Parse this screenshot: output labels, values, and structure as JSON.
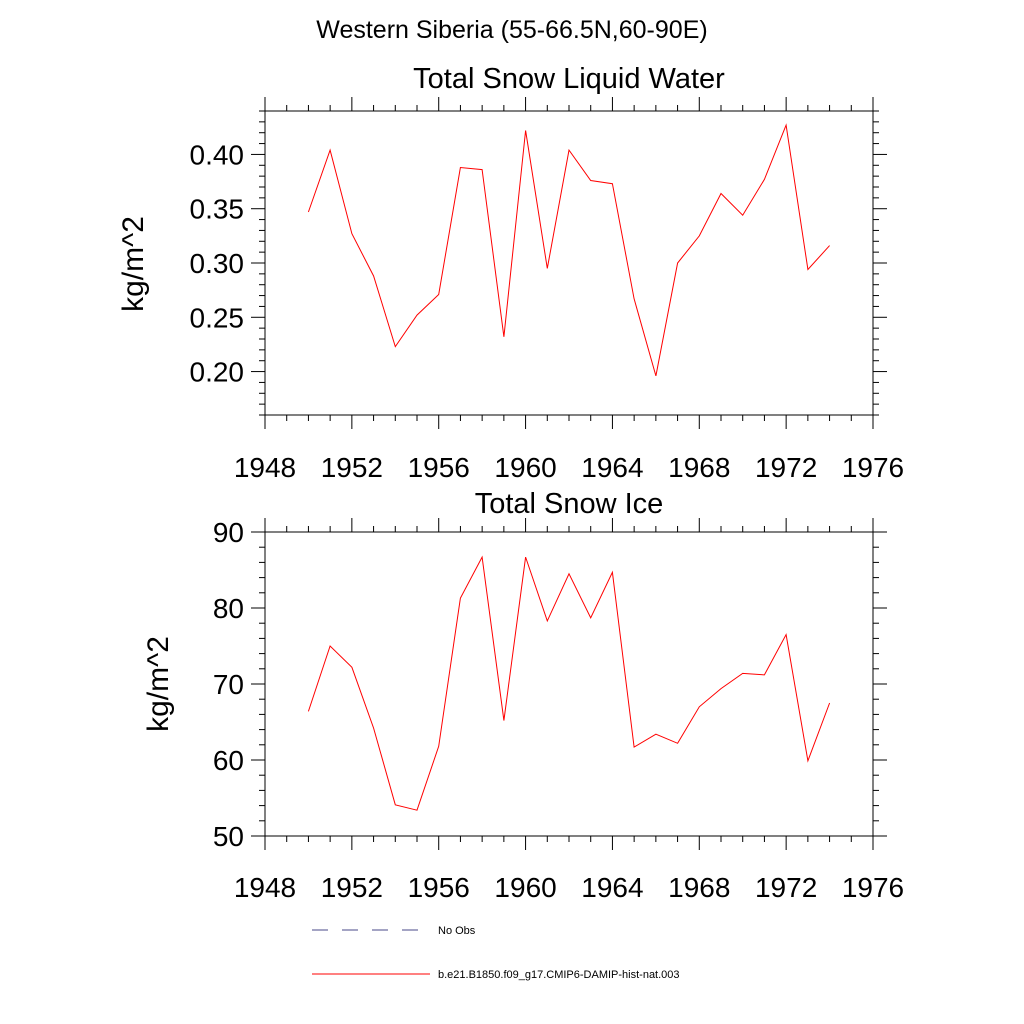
{
  "figure": {
    "suptitle": "Western Siberia (55-66.5N,60-90E)"
  },
  "chart_data": [
    {
      "type": "line",
      "title": "Total Snow Liquid Water",
      "xlabel": "",
      "ylabel": "kg/m^2",
      "xlim": [
        1948,
        1976
      ],
      "ylim": [
        0.16,
        0.44
      ],
      "xticks": [
        1948,
        1952,
        1956,
        1960,
        1964,
        1968,
        1972,
        1976
      ],
      "yticks": [
        0.2,
        0.25,
        0.3,
        0.35,
        0.4
      ],
      "ytick_labels": [
        "0.20",
        "0.25",
        "0.30",
        "0.35",
        "0.40"
      ],
      "grid": false,
      "series": [
        {
          "name": "b.e21.B1850.f09_g17.CMIP6-DAMIP-hist-nat.003",
          "color": "#ff0000",
          "x": [
            1950,
            1951,
            1952,
            1953,
            1954,
            1955,
            1956,
            1957,
            1958,
            1959,
            1960,
            1961,
            1962,
            1963,
            1964,
            1965,
            1966,
            1967,
            1968,
            1969,
            1970,
            1971,
            1972,
            1973,
            1974
          ],
          "y": [
            0.347,
            0.404,
            0.327,
            0.288,
            0.223,
            0.252,
            0.271,
            0.388,
            0.386,
            0.232,
            0.422,
            0.295,
            0.404,
            0.376,
            0.373,
            0.267,
            0.196,
            0.3,
            0.325,
            0.364,
            0.344,
            0.377,
            0.427,
            0.294,
            0.316
          ]
        }
      ]
    },
    {
      "type": "line",
      "title": "Total Snow Ice",
      "xlabel": "",
      "ylabel": "kg/m^2",
      "xlim": [
        1948,
        1976
      ],
      "ylim": [
        50,
        90
      ],
      "xticks": [
        1948,
        1952,
        1956,
        1960,
        1964,
        1968,
        1972,
        1976
      ],
      "yticks": [
        50,
        60,
        70,
        80,
        90
      ],
      "ytick_labels": [
        "50",
        "60",
        "70",
        "80",
        "90"
      ],
      "grid": false,
      "series": [
        {
          "name": "b.e21.B1850.f09_g17.CMIP6-DAMIP-hist-nat.003",
          "color": "#ff0000",
          "x": [
            1950,
            1951,
            1952,
            1953,
            1954,
            1955,
            1956,
            1957,
            1958,
            1959,
            1960,
            1961,
            1962,
            1963,
            1964,
            1965,
            1966,
            1967,
            1968,
            1969,
            1970,
            1971,
            1972,
            1973,
            1974
          ],
          "y": [
            66.4,
            75.0,
            72.2,
            64.2,
            54.1,
            53.4,
            61.8,
            81.3,
            86.7,
            65.2,
            86.7,
            78.3,
            84.5,
            78.7,
            84.7,
            61.7,
            63.4,
            62.2,
            67.0,
            69.4,
            71.4,
            71.2,
            76.5,
            59.9,
            67.5
          ]
        }
      ]
    }
  ],
  "legend": {
    "placement": "bottom-left",
    "entries": [
      {
        "label": "No Obs",
        "color": "#4a4a8a",
        "style": "dashed"
      },
      {
        "label": "b.e21.B1850.f09_g17.CMIP6-DAMIP-hist-nat.003",
        "color": "#ff0000",
        "style": "solid"
      }
    ]
  }
}
